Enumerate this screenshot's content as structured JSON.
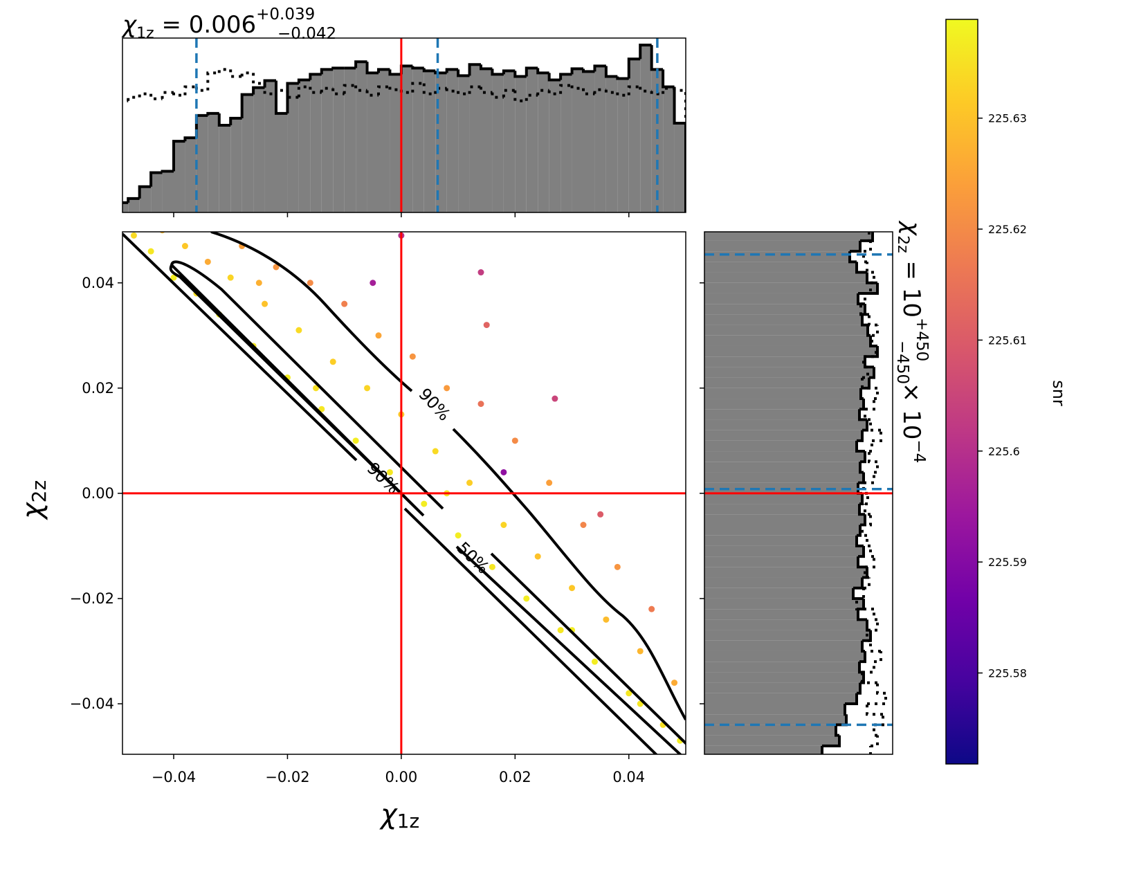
{
  "chart_data": [
    {
      "type": "scatter",
      "x": [
        -0.047,
        -0.044,
        -0.042,
        -0.04,
        -0.038,
        -0.036,
        -0.034,
        -0.032,
        -0.03,
        -0.028,
        -0.026,
        -0.024,
        -0.022,
        -0.02,
        -0.018,
        -0.016,
        -0.014,
        -0.012,
        -0.01,
        -0.008,
        -0.006,
        -0.004,
        -0.002,
        0.0,
        0.0,
        0.002,
        0.004,
        0.006,
        0.008,
        0.01,
        0.012,
        0.014,
        0.016,
        0.018,
        0.02,
        0.022,
        0.024,
        0.026,
        0.028,
        0.03,
        0.032,
        0.034,
        0.036,
        0.038,
        0.04,
        0.042,
        0.044,
        0.046,
        0.048,
        0.049,
        0.015,
        0.027,
        -0.005,
        0.035,
        0.018,
        -0.025,
        0.008,
        -0.015,
        0.03,
        0.042,
        0.014
      ],
      "y": [
        0.049,
        0.046,
        0.05,
        0.041,
        0.047,
        0.038,
        0.044,
        0.034,
        0.041,
        0.047,
        0.028,
        0.036,
        0.043,
        0.022,
        0.031,
        0.04,
        0.016,
        0.025,
        0.036,
        0.01,
        0.02,
        0.03,
        0.004,
        0.015,
        0.049,
        0.026,
        -0.002,
        0.008,
        0.02,
        -0.008,
        0.002,
        0.017,
        -0.014,
        -0.006,
        0.01,
        -0.02,
        -0.012,
        0.002,
        -0.026,
        -0.018,
        -0.006,
        -0.032,
        -0.024,
        -0.014,
        -0.038,
        -0.03,
        -0.022,
        -0.044,
        -0.036,
        -0.047,
        0.032,
        0.018,
        0.04,
        -0.004,
        0.004,
        0.04,
        0.0,
        0.02,
        -0.026,
        -0.04,
        0.042
      ],
      "color_values": [
        225.634,
        225.636,
        225.628,
        225.637,
        225.631,
        225.635,
        225.626,
        225.637,
        225.633,
        225.624,
        225.636,
        225.63,
        225.622,
        225.637,
        225.634,
        225.62,
        225.636,
        225.632,
        225.618,
        225.637,
        225.633,
        225.625,
        225.636,
        225.631,
        225.6,
        225.622,
        225.637,
        225.634,
        225.623,
        225.637,
        225.632,
        225.615,
        225.636,
        225.633,
        225.62,
        225.637,
        225.63,
        225.624,
        225.636,
        225.631,
        225.619,
        225.637,
        225.629,
        225.622,
        225.636,
        225.628,
        225.617,
        225.635,
        225.626,
        225.637,
        225.612,
        225.605,
        225.596,
        225.61,
        225.592,
        225.627,
        225.636,
        225.635,
        225.637,
        225.636,
        225.603
      ],
      "cmap": "plasma",
      "clim": [
        225.5718,
        225.6389
      ],
      "cticks": [
        225.58,
        225.59,
        225.6,
        225.61,
        225.62,
        225.63
      ],
      "colorbar_label": "snr",
      "xlim": [
        -0.049,
        0.05
      ],
      "ylim": [
        -0.0496,
        0.0497
      ],
      "xticks": [
        {
          "value": -0.04,
          "label": "−0.04"
        },
        {
          "value": -0.02,
          "label": "−0.02"
        },
        {
          "value": 0,
          "label": "0.00"
        },
        0.02,
        0.04
      ],
      "yticks": [
        {
          "value": -0.04,
          "label": "−0.04"
        },
        {
          "value": -0.02,
          "label": "−0.02"
        },
        {
          "value": 0,
          "label": "0.00"
        },
        0.02,
        0.04
      ],
      "xlabel_parts": [
        "χ",
        "1z"
      ],
      "ylabel_parts": [
        "χ",
        "2z"
      ],
      "truth": [
        0,
        0
      ],
      "truth_color": "#ff0000",
      "contour_labels": [
        "90%",
        "90%",
        "50%"
      ]
    },
    {
      "type": "histogram",
      "orientation": "vertical",
      "title_parts": [
        "χ",
        "1z",
        " = 0.006",
        "+0.039",
        "−0.042"
      ],
      "bins": [
        -0.05,
        -0.048,
        -0.046,
        -0.044,
        -0.042,
        -0.04,
        -0.038,
        -0.036,
        -0.034,
        -0.032,
        -0.03,
        -0.028,
        -0.026,
        -0.024,
        -0.022,
        -0.02,
        -0.018,
        -0.016,
        -0.014,
        -0.012,
        -0.01,
        -0.008,
        -0.006,
        -0.004,
        -0.002,
        0,
        0.002,
        0.004,
        0.006,
        0.008,
        0.01,
        0.012,
        0.014,
        0.016,
        0.018,
        0.02,
        0.022,
        0.024,
        0.026,
        0.028,
        0.03,
        0.032,
        0.034,
        0.036,
        0.038,
        0.04,
        0.042,
        0.044,
        0.046,
        0.048,
        0.05
      ],
      "counts": [
        14,
        20,
        37,
        57,
        59,
        102,
        107,
        139,
        142,
        125,
        135,
        169,
        179,
        189,
        142,
        185,
        190,
        198,
        205,
        207,
        207,
        216,
        200,
        205,
        198,
        210,
        207,
        203,
        200,
        205,
        196,
        212,
        206,
        198,
        203,
        195,
        207,
        200,
        190,
        198,
        206,
        202,
        210,
        195,
        192,
        220,
        240,
        205,
        180,
        128
      ],
      "prior_counts": [
        160,
        165,
        170,
        163,
        172,
        168,
        180,
        175,
        200,
        205,
        195,
        200,
        185,
        170,
        175,
        165,
        180,
        172,
        178,
        170,
        182,
        175,
        168,
        180,
        176,
        172,
        185,
        170,
        178,
        174,
        170,
        180,
        172,
        165,
        175,
        160,
        168,
        175,
        170,
        182,
        178,
        170,
        176,
        172,
        168,
        180,
        174,
        170,
        178,
        175
      ],
      "quantiles": [
        -0.036,
        0.0064,
        0.045
      ],
      "truth": 0,
      "color": "#808080",
      "quantile_color": "#1f77b4",
      "xlim": [
        -0.049,
        0.05
      ],
      "ylim": [
        0,
        250
      ],
      "xticks": [
        -0.04,
        -0.02,
        0,
        0.02,
        0.04
      ]
    },
    {
      "type": "histogram",
      "orientation": "horizontal",
      "title_parts": [
        "χ",
        "2z",
        " = 10",
        "+450",
        "−450",
        " × 10",
        "−4"
      ],
      "bins": [
        -0.05,
        -0.048,
        -0.046,
        -0.044,
        -0.042,
        -0.04,
        -0.038,
        -0.036,
        -0.034,
        -0.032,
        -0.03,
        -0.028,
        -0.026,
        -0.024,
        -0.022,
        -0.02,
        -0.018,
        -0.016,
        -0.014,
        -0.012,
        -0.01,
        -0.008,
        -0.006,
        -0.004,
        -0.002,
        0,
        0.002,
        0.004,
        0.006,
        0.008,
        0.01,
        0.012,
        0.014,
        0.016,
        0.018,
        0.02,
        0.022,
        0.024,
        0.026,
        0.028,
        0.03,
        0.032,
        0.034,
        0.036,
        0.038,
        0.04,
        0.042,
        0.044,
        0.046,
        0.048,
        0.05
      ],
      "counts": [
        170,
        195,
        190,
        205,
        203,
        220,
        225,
        230,
        224,
        232,
        228,
        240,
        235,
        222,
        230,
        215,
        228,
        235,
        222,
        230,
        220,
        225,
        232,
        224,
        228,
        222,
        230,
        225,
        232,
        220,
        228,
        235,
        224,
        230,
        226,
        238,
        245,
        232,
        250,
        240,
        236,
        228,
        232,
        222,
        250,
        235,
        220,
        210,
        225,
        243
      ],
      "prior_counts": [
        240,
        250,
        245,
        258,
        235,
        262,
        250,
        228,
        245,
        255,
        240,
        235,
        250,
        245,
        220,
        230,
        238,
        232,
        245,
        240,
        235,
        228,
        240,
        232,
        236,
        230,
        245,
        250,
        238,
        242,
        255,
        240,
        232,
        245,
        250,
        228,
        236,
        230,
        248,
        242,
        250,
        238,
        226,
        232,
        240,
        245,
        235,
        230,
        240,
        238
      ],
      "quantiles": [
        -0.044,
        0.0008,
        0.0454
      ],
      "truth": 0,
      "color": "#808080",
      "quantile_color": "#1f77b4",
      "xlim": [
        0,
        272
      ],
      "ylim": [
        -0.0496,
        0.0497
      ],
      "yticks": [
        -0.04,
        -0.02,
        0,
        0.02,
        0.04
      ]
    }
  ]
}
